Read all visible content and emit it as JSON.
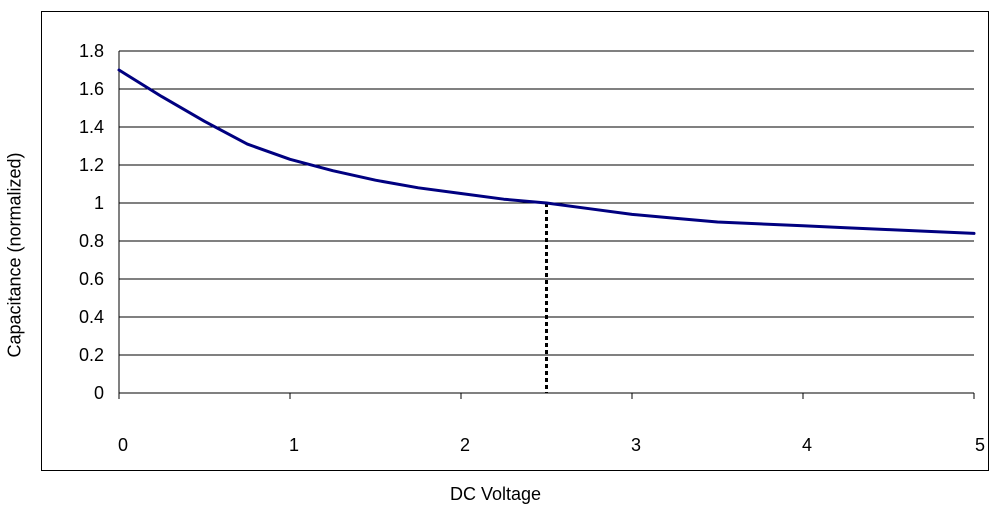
{
  "chart_data": {
    "type": "line",
    "title": "",
    "xlabel": "DC Voltage",
    "ylabel": "Capacitance (normalized)",
    "xlim": [
      0,
      5
    ],
    "ylim": [
      0,
      1.8
    ],
    "x_ticks": [
      0,
      1,
      2,
      3,
      4,
      5
    ],
    "y_ticks": [
      0,
      0.2,
      0.4,
      0.6,
      0.8,
      1,
      1.2,
      1.4,
      1.6,
      1.8
    ],
    "grid": "horizontal",
    "legend": "none",
    "series": [
      {
        "color": "#000080",
        "x": [
          0,
          0.25,
          0.5,
          0.75,
          1.0,
          1.25,
          1.5,
          1.75,
          2.0,
          2.25,
          2.5,
          2.75,
          3.0,
          3.25,
          3.5,
          3.75,
          4.0,
          4.25,
          4.5,
          4.75,
          5.0
        ],
        "y": [
          1.7,
          1.56,
          1.43,
          1.31,
          1.23,
          1.17,
          1.12,
          1.08,
          1.05,
          1.02,
          1.0,
          0.97,
          0.94,
          0.92,
          0.9,
          0.89,
          0.88,
          0.87,
          0.86,
          0.85,
          0.84
        ]
      }
    ],
    "reference_line": {
      "x": 2.5,
      "y": 1.0,
      "style": "dotted",
      "color": "#000000"
    }
  }
}
